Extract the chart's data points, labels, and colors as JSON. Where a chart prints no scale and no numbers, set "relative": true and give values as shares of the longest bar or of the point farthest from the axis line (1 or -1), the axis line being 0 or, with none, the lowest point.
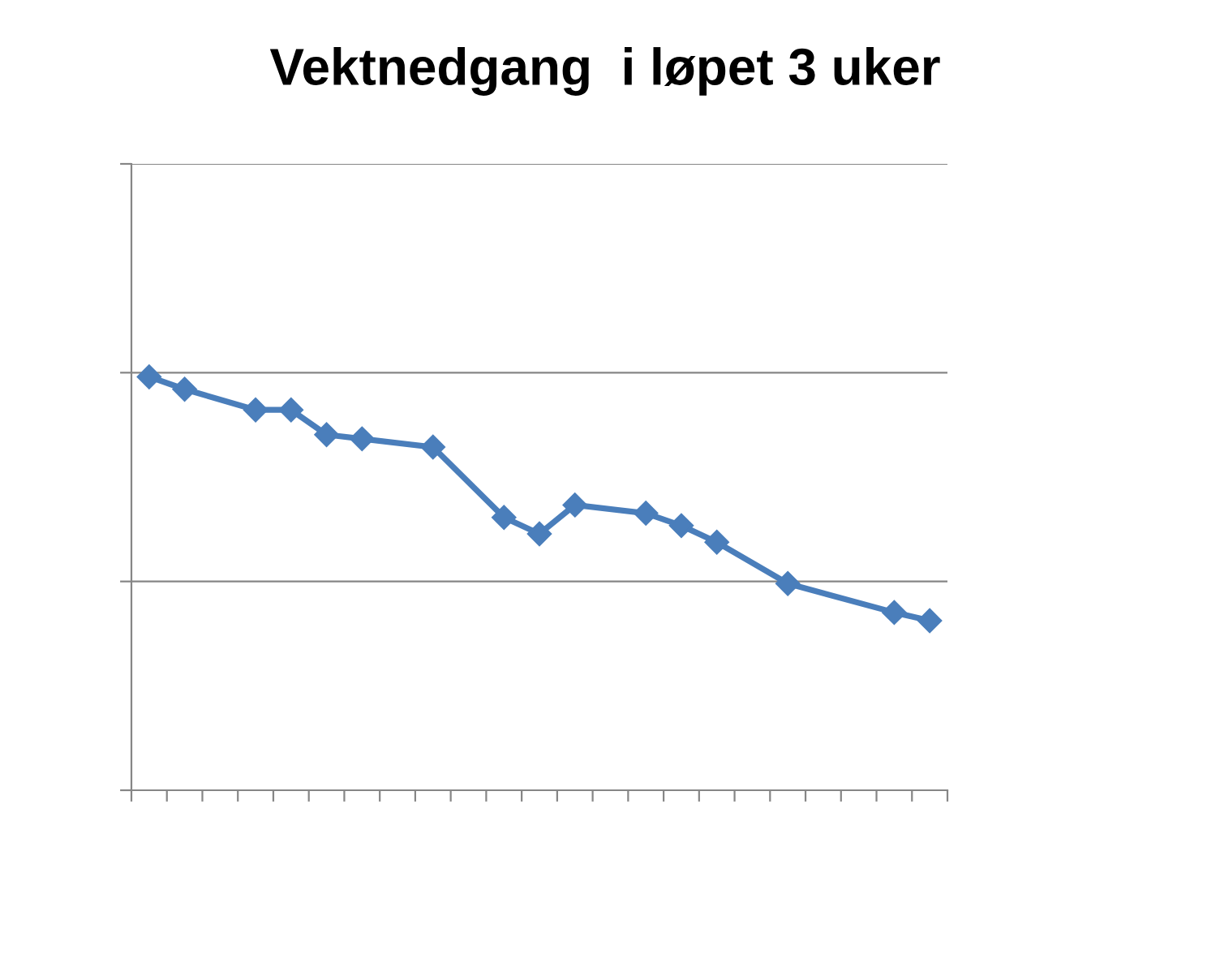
{
  "chart_data": {
    "type": "line",
    "title": "Vektnedgang  i løpet 3 uker",
    "relative": true,
    "categories": [
      null,
      null,
      null,
      null,
      null,
      null,
      null,
      null,
      null,
      null,
      null,
      null,
      null,
      null,
      null,
      null,
      null,
      null,
      null,
      null,
      null,
      null,
      null
    ],
    "series": [
      {
        "color": "#4a7ebb",
        "values": [
          1,
          0.97,
          null,
          0.92,
          0.92,
          0.86,
          0.85,
          null,
          0.83,
          null,
          0.66,
          0.62,
          0.69,
          null,
          0.67,
          0.64,
          0.6,
          null,
          0.5,
          null,
          null,
          0.43,
          0.41
        ]
      }
    ],
    "ref_lines": [
      {
        "axis": "y",
        "value": 0.505,
        "color": "#868686",
        "line_style": "solid"
      },
      {
        "axis": "y",
        "value": 1.01,
        "color": "#868686",
        "line_style": "solid"
      },
      {
        "axis": "y",
        "value": 1.515,
        "color": "#868686",
        "line_style": "solid"
      }
    ],
    "marker": "diamond",
    "line_style": "solid"
  }
}
